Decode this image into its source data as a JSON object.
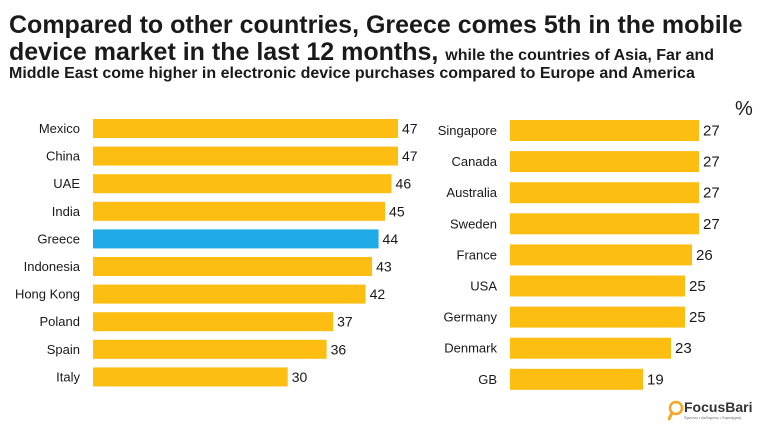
{
  "headline": {
    "main": "Compared to other countries, Greece comes 5th in the mobile device market in the last 12 months,",
    "sub_part1": "while the countries of Asia, Far and",
    "sub_part2": "Middle East come higher in electronic device purchases compared to Europe and America"
  },
  "unit_label": "%",
  "colors": {
    "bar": "#FDBE11",
    "highlight": "#1FA9E6"
  },
  "logo": {
    "name": "FocusBari",
    "tagline": "Έρευνα • Δεδομένα • Στρατηγική",
    "icon": "magnifier-icon"
  },
  "chart_data": [
    {
      "type": "bar",
      "orientation": "horizontal",
      "categories": [
        "Mexico",
        "China",
        "UAE",
        "India",
        "Greece",
        "Indonesia",
        "Hong Kong",
        "Poland",
        "Spain",
        "Italy"
      ],
      "values": [
        47,
        47,
        46,
        45,
        44,
        43,
        42,
        37,
        36,
        30
      ],
      "highlight": "Greece",
      "grid": false
    },
    {
      "type": "bar",
      "orientation": "horizontal",
      "categories": [
        "Singapore",
        "Canada",
        "Australia",
        "Sweden",
        "France",
        "USA",
        "Germany",
        "Denmark",
        "GB"
      ],
      "values": [
        27,
        27,
        27,
        27,
        26,
        25,
        25,
        23,
        19
      ],
      "grid": false
    }
  ]
}
